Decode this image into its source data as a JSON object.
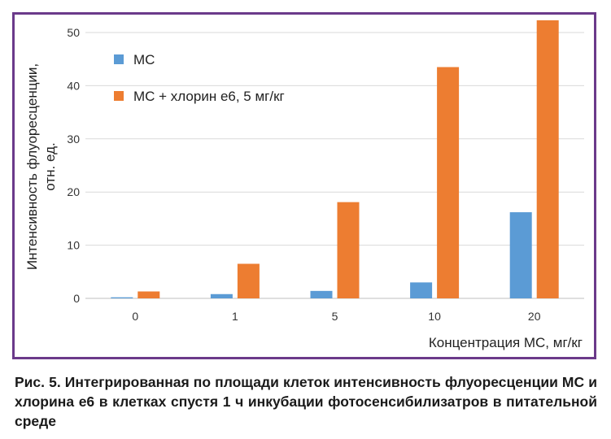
{
  "chart_data": {
    "type": "bar",
    "categories": [
      "0",
      "1",
      "5",
      "10",
      "20"
    ],
    "series": [
      {
        "name": "МС",
        "values": [
          0.2,
          0.8,
          1.4,
          3.0,
          16.2
        ],
        "color": "#5b9bd5"
      },
      {
        "name": "МС + хлорин е6, 5 мг/кг",
        "values": [
          1.3,
          6.5,
          18.1,
          43.5,
          52.3
        ],
        "color": "#ed7d31"
      }
    ],
    "xlabel": "Концентрация МС, мг/кг",
    "ylabel_line1": "Интенсивность флуоресценции,",
    "ylabel_line2": "отн. ед.",
    "ylim": [
      0,
      50
    ],
    "yticks": [
      "0",
      "10",
      "20",
      "30",
      "40",
      "50"
    ],
    "grid": true,
    "legend_position": "top-left"
  },
  "caption": "Рис. 5. Интегрированная по площади клеток интенсивность флуоресценции МС и хлорина е6 в клетках спустя 1 ч инкубации фотосенсибилизатров в питательной среде"
}
